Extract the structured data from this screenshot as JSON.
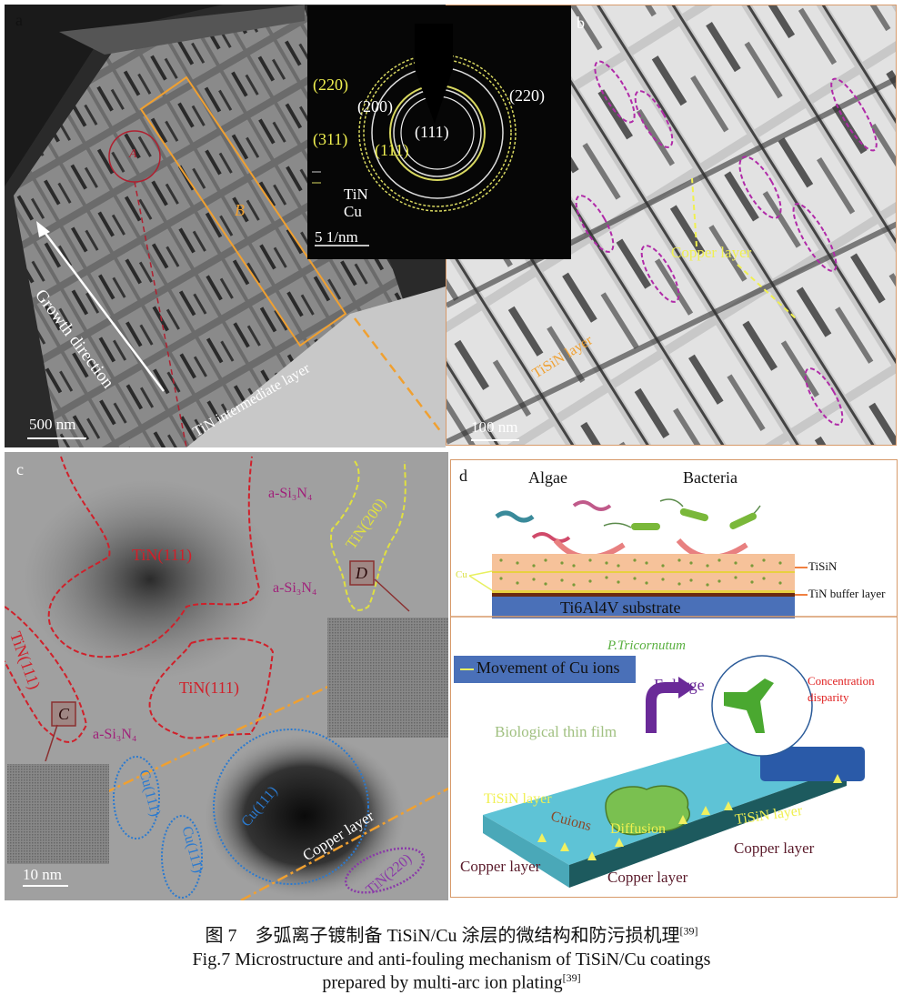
{
  "figure": {
    "caption_cn": "图 7　多弧离子镀制备 TiSiN/Cu 涂层的微结构和防污损机理",
    "caption_cn_ref": "[39]",
    "caption_en_line1": "Fig.7 Microstructure and anti-fouling mechanism of TiSiN/Cu coatings",
    "caption_en_line2": "prepared by multi-arc ion plating",
    "caption_en_ref": "[39]"
  },
  "panel_a": {
    "label": "a",
    "region_a": "A",
    "region_b": "B",
    "growth_direction": "Growth direction",
    "intermediate_layer": "TiN intermediate layer",
    "scale_bar": "500 nm",
    "saed": {
      "cu_220": "(220)",
      "cu_311": "(311)",
      "cu_111": "(111)",
      "tin_200": "(200)",
      "tin_111": "(111)",
      "tin_220": "(220)",
      "legend_tin": "TiN",
      "legend_cu": "Cu",
      "scale_bar": "5 1/nm"
    }
  },
  "panel_b": {
    "label": "b",
    "copper_layer": "Copper layer",
    "tisin_layer": "TiSiN layer",
    "scale_bar": "100 nm"
  },
  "panel_c": {
    "label": "c",
    "tin111_a": "TiN(111)",
    "tin111_b": "TiN(111)",
    "tin111_c": "TiN(111)",
    "si3n4_a": "a-Si₃N₄",
    "si3n4_b": "a-Si₃N₄",
    "si3n4_c": "a-Si₃N₄",
    "tin200": "TiN(200)",
    "tin220": "TiN(220)",
    "cu111_a": "Cu(111)",
    "cu111_b": "Cu(111)",
    "cu111_c": "Cu(111)",
    "copper_layer": "Copper layer",
    "box_c": "C",
    "box_d": "D",
    "scale_bar": "10 nm"
  },
  "panel_d": {
    "label": "d",
    "algae": "Algae",
    "bacteria": "Bacteria",
    "tisin": "TiSiN",
    "tin_buffer": "TiN buffer layer",
    "cu": "Cu",
    "substrate": "Ti6Al4V substrate",
    "legend": "Movement of Cu ions",
    "species": "P.Tricornutum",
    "enlarge": "Enlarge",
    "concentration_1": "Concentration",
    "concentration_2": "disparity",
    "biofilm": "Biological thin film",
    "tisin_layer_left": "TiSiN layer",
    "tisin_layer_right": "TiSiN layer",
    "cu_ions": "Cuions",
    "diffusion": "Diffusion",
    "copper_left": "Copper layer",
    "copper_mid": "Copper layer",
    "copper_right": "Copper layer"
  },
  "colors": {
    "frame": "#d79a6a",
    "orange": "#f0a030",
    "yellow": "#f5f06a",
    "red_outline": "#d0202a",
    "blue_outline": "#2a7ad0",
    "purple": "#8a3aa8",
    "slab_top": "#5ec3d6",
    "slab_side": "#1d5a5e",
    "substrate": "#4a70b8"
  }
}
